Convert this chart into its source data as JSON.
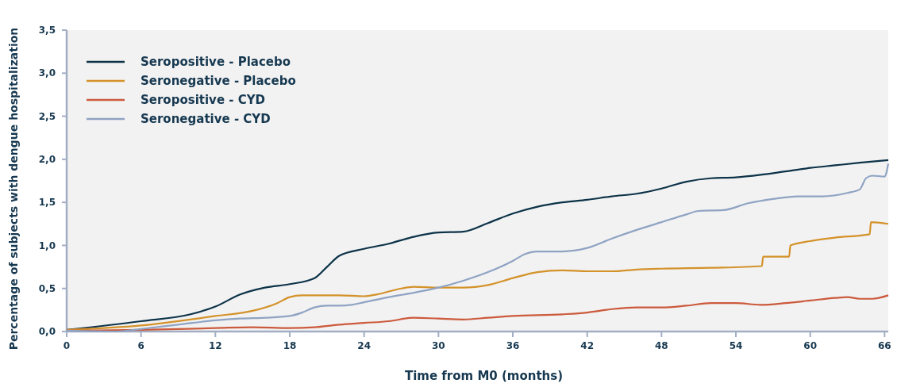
{
  "chart_data": {
    "type": "line",
    "xlabel": "Time from M0 (months)",
    "ylabel": "Percentage of subjects with dengue hospitalization",
    "xlim": [
      0,
      66.3
    ],
    "xticks": [
      0,
      6,
      12,
      18,
      24,
      30,
      36,
      42,
      48,
      54,
      60,
      66
    ],
    "ylim": [
      0,
      3.5
    ],
    "yticks": [
      {
        "value": 0,
        "label": "0,0"
      },
      {
        "value": 0.5,
        "label": "0,5"
      },
      {
        "value": 1,
        "label": "1,0"
      },
      {
        "value": 1.5,
        "label": "1,5"
      },
      {
        "value": 2,
        "label": "2,0"
      },
      {
        "value": 2.5,
        "label": "2,5"
      },
      {
        "value": 3,
        "label": "3,0"
      },
      {
        "value": 3.5,
        "label": "3,5"
      }
    ],
    "legend": "top left",
    "grid": false,
    "series": [
      {
        "name": "Seropositive - Placebo",
        "color": "#0d3349",
        "x": [
          0,
          6,
          10,
          12,
          14,
          16,
          18,
          20,
          21,
          22,
          24,
          26,
          28,
          30,
          32,
          34,
          36,
          38,
          40,
          42,
          44,
          46,
          48,
          50,
          52,
          54,
          56,
          58,
          60,
          62,
          64,
          66.3
        ],
        "values": [
          0.02,
          0.12,
          0.2,
          0.29,
          0.43,
          0.51,
          0.55,
          0.62,
          0.75,
          0.88,
          0.96,
          1.02,
          1.1,
          1.15,
          1.16,
          1.26,
          1.37,
          1.45,
          1.5,
          1.53,
          1.57,
          1.6,
          1.66,
          1.74,
          1.78,
          1.79,
          1.82,
          1.86,
          1.9,
          1.93,
          1.96,
          1.99
        ]
      },
      {
        "name": "Seronegative - Placebo",
        "color": "#d4922a",
        "x": [
          0,
          6,
          12,
          15,
          17,
          18,
          19,
          22,
          24,
          25,
          27,
          28,
          30,
          32,
          34,
          36,
          38,
          40,
          42,
          44,
          46,
          48,
          52,
          56.1,
          56.2,
          58.3,
          58.4,
          60,
          62,
          64.8,
          64.9,
          66.3
        ],
        "values": [
          0.02,
          0.07,
          0.18,
          0.24,
          0.33,
          0.4,
          0.42,
          0.42,
          0.41,
          0.43,
          0.5,
          0.52,
          0.51,
          0.51,
          0.54,
          0.62,
          0.69,
          0.71,
          0.7,
          0.7,
          0.72,
          0.73,
          0.74,
          0.76,
          0.87,
          0.87,
          1.0,
          1.05,
          1.09,
          1.13,
          1.27,
          1.25
        ]
      },
      {
        "name": "Seropositive - CYD",
        "color": "#cc5a3c",
        "x": [
          0,
          6,
          12,
          15,
          18,
          20,
          22,
          24,
          26,
          28,
          30,
          32,
          34,
          36,
          40,
          42,
          44,
          46,
          48,
          50,
          52,
          54,
          56,
          58,
          60,
          62,
          63,
          64,
          65,
          66.3
        ],
        "values": [
          0.01,
          0.02,
          0.04,
          0.05,
          0.04,
          0.05,
          0.08,
          0.1,
          0.12,
          0.16,
          0.15,
          0.14,
          0.16,
          0.18,
          0.2,
          0.22,
          0.26,
          0.28,
          0.28,
          0.3,
          0.33,
          0.33,
          0.31,
          0.33,
          0.36,
          0.39,
          0.4,
          0.38,
          0.38,
          0.42
        ]
      },
      {
        "name": "Seronegative - CYD",
        "color": "#8fa3c3",
        "x": [
          0,
          4,
          6,
          9,
          12,
          14,
          16,
          18,
          19,
          20,
          21,
          22,
          23,
          24,
          26,
          28,
          30,
          32,
          34,
          36,
          37,
          38,
          40,
          42,
          44,
          46,
          48,
          50,
          51,
          53,
          55,
          57,
          59,
          61,
          63,
          64,
          64.5,
          65,
          66,
          66.3
        ],
        "values": [
          0.01,
          0.0,
          0.03,
          0.08,
          0.13,
          0.15,
          0.16,
          0.18,
          0.22,
          0.28,
          0.3,
          0.3,
          0.31,
          0.34,
          0.4,
          0.45,
          0.51,
          0.59,
          0.69,
          0.82,
          0.9,
          0.93,
          0.93,
          0.97,
          1.08,
          1.18,
          1.27,
          1.36,
          1.4,
          1.41,
          1.49,
          1.54,
          1.57,
          1.57,
          1.61,
          1.65,
          1.78,
          1.81,
          1.8,
          1.95
        ]
      }
    ]
  }
}
